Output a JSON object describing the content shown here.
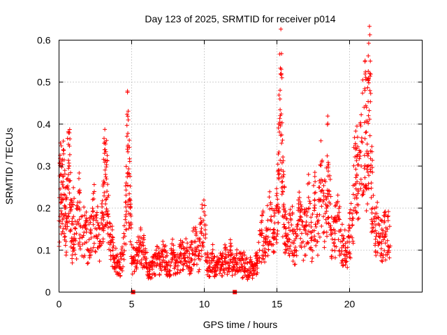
{
  "chart_data": {
    "type": "scatter",
    "title": "Day 123 of 2025, SRMTID for receiver p014",
    "xlabel": "GPS time / hours",
    "ylabel": "SRMTID / TECUs",
    "xlim": [
      0,
      25
    ],
    "ylim": [
      0,
      0.6
    ],
    "xticks": [
      0,
      5,
      10,
      15,
      20
    ],
    "xtick_labels": [
      "0",
      "5",
      "10",
      "15",
      "20"
    ],
    "yticks": [
      0,
      0.1,
      0.2,
      0.3,
      0.4,
      0.5,
      0.6
    ],
    "ytick_labels": [
      "0",
      "0.1",
      "0.2",
      "0.3",
      "0.4",
      "0.5",
      "0.6"
    ],
    "grid": true,
    "marker": "+",
    "series": [
      {
        "name": "SRMTID",
        "color": "#ff0000",
        "points_note": "dense cloud of samples, approx. every 30 s",
        "x": [
          0.0,
          0.1,
          0.2,
          0.3,
          0.4,
          0.5,
          0.6,
          0.7,
          0.8,
          0.9,
          1.0,
          1.2,
          1.4,
          1.6,
          1.8,
          2.0,
          2.2,
          2.4,
          2.6,
          2.8,
          3.0,
          3.1,
          3.2,
          3.3,
          3.4,
          3.6,
          3.8,
          4.0,
          4.2,
          4.4,
          4.6,
          4.7,
          4.8,
          4.9,
          5.0,
          5.2,
          5.4,
          5.6,
          5.8,
          6.0,
          6.2,
          6.4,
          6.6,
          6.8,
          7.0,
          7.2,
          7.4,
          7.6,
          7.8,
          8.0,
          8.2,
          8.4,
          8.6,
          8.8,
          9.0,
          9.2,
          9.4,
          9.6,
          9.8,
          10.0,
          10.2,
          10.4,
          10.6,
          10.8,
          11.0,
          11.2,
          11.4,
          11.6,
          11.8,
          12.0,
          12.2,
          12.4,
          12.6,
          12.8,
          13.0,
          13.2,
          13.4,
          13.6,
          13.8,
          14.0,
          14.2,
          14.4,
          14.6,
          14.8,
          15.0,
          15.1,
          15.2,
          15.3,
          15.4,
          15.5,
          15.6,
          15.8,
          16.0,
          16.2,
          16.4,
          16.6,
          16.8,
          17.0,
          17.2,
          17.4,
          17.6,
          17.8,
          18.0,
          18.2,
          18.4,
          18.5,
          18.6,
          18.8,
          19.0,
          19.2,
          19.4,
          19.6,
          19.8,
          20.0,
          20.2,
          20.4,
          20.5,
          20.6,
          20.8,
          21.0,
          21.1,
          21.2,
          21.3,
          21.4,
          21.5,
          21.6,
          21.8,
          22.0,
          22.2,
          22.4,
          22.6,
          22.8
        ],
        "y": [
          0.17,
          0.28,
          0.22,
          0.25,
          0.2,
          0.15,
          0.27,
          0.3,
          0.22,
          0.12,
          0.18,
          0.14,
          0.2,
          0.13,
          0.16,
          0.1,
          0.14,
          0.18,
          0.15,
          0.12,
          0.16,
          0.26,
          0.28,
          0.24,
          0.18,
          0.12,
          0.08,
          0.07,
          0.06,
          0.09,
          0.18,
          0.34,
          0.28,
          0.2,
          0.08,
          0.07,
          0.09,
          0.12,
          0.1,
          0.07,
          0.05,
          0.06,
          0.07,
          0.08,
          0.06,
          0.1,
          0.07,
          0.05,
          0.09,
          0.06,
          0.07,
          0.09,
          0.08,
          0.1,
          0.07,
          0.1,
          0.12,
          0.08,
          0.14,
          0.16,
          0.07,
          0.06,
          0.08,
          0.05,
          0.07,
          0.06,
          0.08,
          0.07,
          0.09,
          0.06,
          0.07,
          0.08,
          0.06,
          0.07,
          0.05,
          0.06,
          0.05,
          0.07,
          0.1,
          0.14,
          0.12,
          0.15,
          0.18,
          0.13,
          0.2,
          0.28,
          0.4,
          0.52,
          0.24,
          0.2,
          0.14,
          0.12,
          0.16,
          0.1,
          0.15,
          0.18,
          0.12,
          0.16,
          0.2,
          0.13,
          0.22,
          0.12,
          0.26,
          0.18,
          0.2,
          0.3,
          0.24,
          0.1,
          0.14,
          0.18,
          0.12,
          0.11,
          0.09,
          0.13,
          0.16,
          0.35,
          0.28,
          0.24,
          0.3,
          0.44,
          0.38,
          0.3,
          0.42,
          0.48,
          0.26,
          0.2,
          0.16,
          0.14,
          0.12,
          0.13,
          0.15,
          0.11
        ]
      }
    ],
    "markers_on_axis": [
      5.1,
      12.1
    ]
  }
}
